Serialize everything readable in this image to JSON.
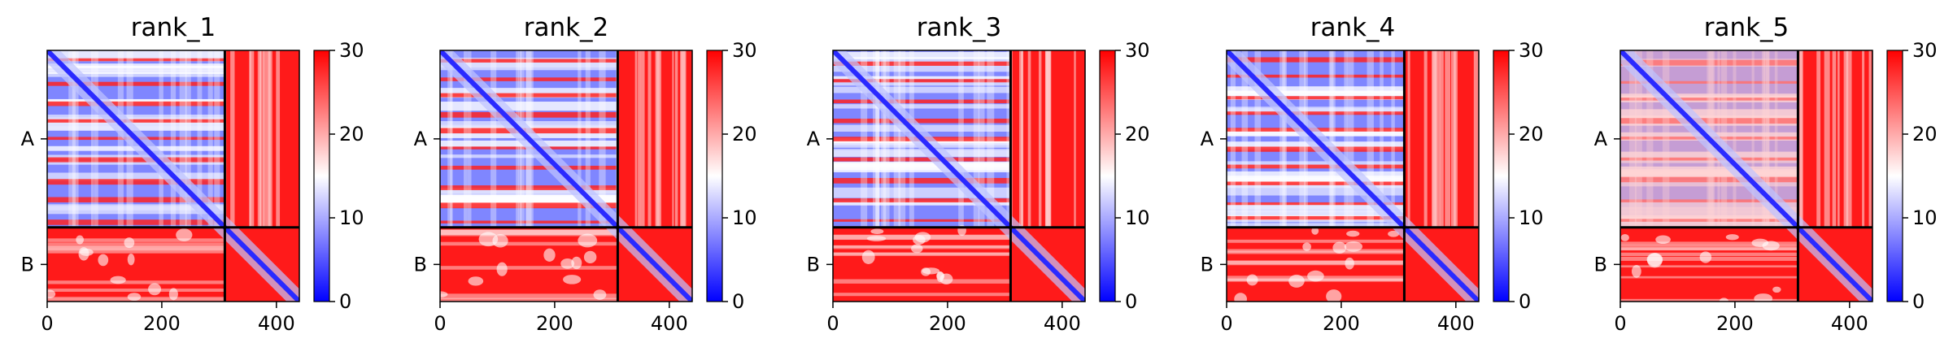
{
  "chart_data": {
    "type": "heatmap",
    "description_note": "",
    "panels": [
      {
        "title": "rank_1"
      },
      {
        "title": "rank_2"
      },
      {
        "title": "rank_3"
      },
      {
        "title": "rank_4"
      },
      {
        "title": "rank_5"
      }
    ],
    "chains": [
      {
        "label": "A",
        "start": 0,
        "end": 310
      },
      {
        "label": "B",
        "start": 310,
        "end": 440
      }
    ],
    "xlim": [
      0,
      440
    ],
    "ylim": [
      0,
      440
    ],
    "xticks": [
      0,
      200,
      400
    ],
    "colorbar": {
      "min": 0,
      "max": 30,
      "ticks": [
        0,
        10,
        20,
        30
      ],
      "colormap": [
        "#0000ff",
        "#ffffff",
        "#ff0000"
      ]
    },
    "values_note": ""
  }
}
